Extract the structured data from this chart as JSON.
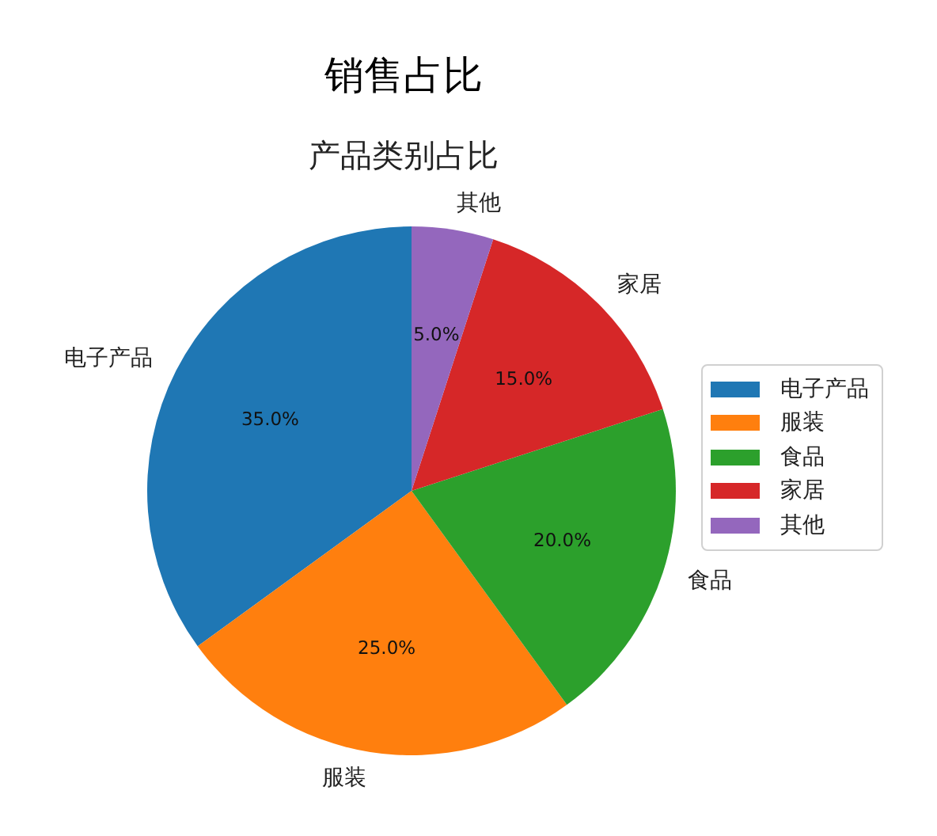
{
  "chart_data": {
    "type": "pie",
    "title": "销售占比",
    "subtitle": "产品类别占比",
    "categories": [
      "电子产品",
      "服装",
      "食品",
      "家居",
      "其他"
    ],
    "values": [
      35,
      25,
      20,
      15,
      5
    ],
    "colors": [
      "#1f77b4",
      "#ff7f0e",
      "#2ca02c",
      "#d62728",
      "#9467bd"
    ],
    "value_labels": [
      "35.0%",
      "25.0%",
      "20.0%",
      "15.0%",
      "5.0%"
    ],
    "legend": "right"
  }
}
